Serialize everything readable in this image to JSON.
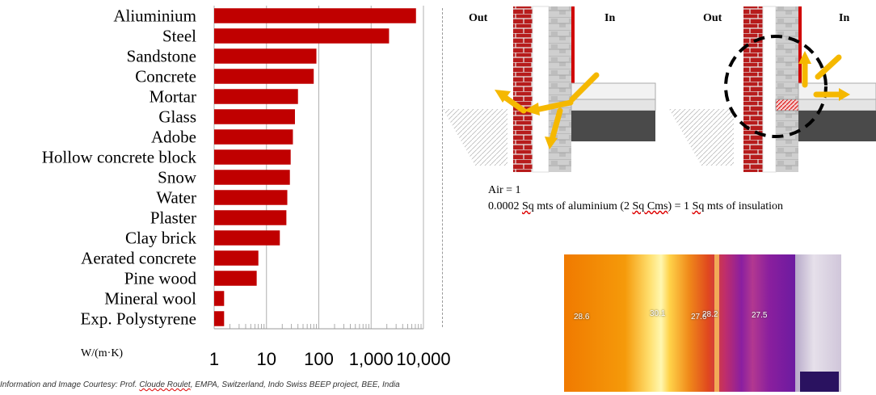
{
  "chart_data": {
    "type": "bar",
    "orientation": "horizontal",
    "x_scale": "log",
    "xlim": [
      1,
      10000
    ],
    "xticks": [
      "1",
      "10",
      "100",
      "1,000",
      "10,000"
    ],
    "xlabel": "W/(m·K)",
    "grid": "vertical major and minor log gridlines",
    "categories": [
      "Aliuminium",
      "Steel",
      "Sandstone",
      "Concrete",
      "Mortar",
      "Glass",
      "Adobe",
      "Hollow concrete block",
      "Snow",
      "Water",
      "Plaster",
      "Clay brick",
      "Aerated concrete",
      "Pine wood",
      "Mineral wool",
      "Exp. Polystyrene"
    ],
    "values": [
      7200,
      2200,
      90,
      80,
      40,
      35,
      32,
      29,
      28,
      25,
      24,
      18,
      7,
      6.5,
      1.55,
      1.55
    ],
    "bar_color": "#c00000"
  },
  "diagrams": [
    {
      "out_label": "Out",
      "in_label": "In"
    },
    {
      "out_label": "Out",
      "in_label": "In"
    }
  ],
  "equations": {
    "air": "Air = 1",
    "aluminium_prefix": "0.0002 ",
    "aluminium_sq1": "Sq",
    "aluminium_mid": " mts of aluminium (2 ",
    "aluminium_sq2": "Sq",
    "aluminium_cms": " Cms",
    "aluminium_mid2": ") = 1 ",
    "aluminium_sq3": "Sq",
    "aluminium_suffix": " mts of insulation"
  },
  "thermal_readings": [
    "28.6",
    "30.1",
    "27.6",
    "28.2",
    "27.5"
  ],
  "credit": {
    "part1": "Information and Image Courtesy: Prof. ",
    "name": "Cloude Roulet",
    "part2": ", EMPA, Switzerland, Indo Swiss BEEP project, BEE, India"
  },
  "colors": {
    "brick": "#b71c1c",
    "arrow": "#f5b800",
    "slab": "#4a4a4a"
  }
}
